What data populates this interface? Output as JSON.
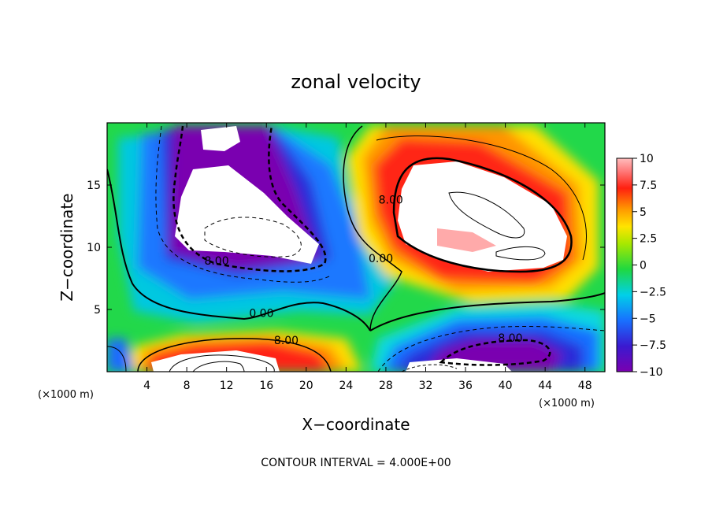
{
  "chart_data": {
    "type": "contour",
    "title": "zonal velocity",
    "xlabel": "X−coordinate",
    "ylabel": "Z−coordinate",
    "x_unit_label": "(×1000 m)",
    "z_unit_label": "(×1000 m)",
    "xlim": [
      0,
      50
    ],
    "ylim": [
      0,
      20
    ],
    "x_ticks": [
      4,
      8,
      12,
      16,
      20,
      24,
      28,
      32,
      36,
      40,
      44,
      48
    ],
    "y_ticks": [
      5,
      10,
      15
    ],
    "colorbar": {
      "min": -10,
      "max": 10,
      "ticks": [
        "10",
        "7.5",
        "5",
        "2.5",
        "0",
        "−2.5",
        "−5",
        "−7.5",
        "−10"
      ]
    },
    "contour_interval_text": "CONTOUR INTERVAL = 4.000E+00",
    "contour_labels": [
      {
        "text": "8.00",
        "x": 11,
        "z": 8.6
      },
      {
        "text": "8.00",
        "x": 28.5,
        "z": 13.5
      },
      {
        "text": "0.00",
        "x": 27.5,
        "z": 8.8
      },
      {
        "text": "0.00",
        "x": 15.5,
        "z": 4.4
      },
      {
        "text": "8.00",
        "x": 18,
        "z": 2.2
      },
      {
        "text": "8.00",
        "x": 40.5,
        "z": 2.4
      }
    ],
    "features": [
      {
        "name": "negative core upper left",
        "x": 14,
        "z": 12,
        "sign": "negative",
        "peak": -10
      },
      {
        "name": "positive core upper right",
        "x": 37,
        "z": 12.5,
        "sign": "positive",
        "peak": 10
      },
      {
        "name": "positive core lower left",
        "x": 12,
        "z": 0.8,
        "sign": "positive",
        "peak": 10
      },
      {
        "name": "negative core lower right",
        "x": 37,
        "z": 1.5,
        "sign": "negative",
        "peak": -10
      }
    ],
    "grid": false,
    "legend": "right"
  }
}
